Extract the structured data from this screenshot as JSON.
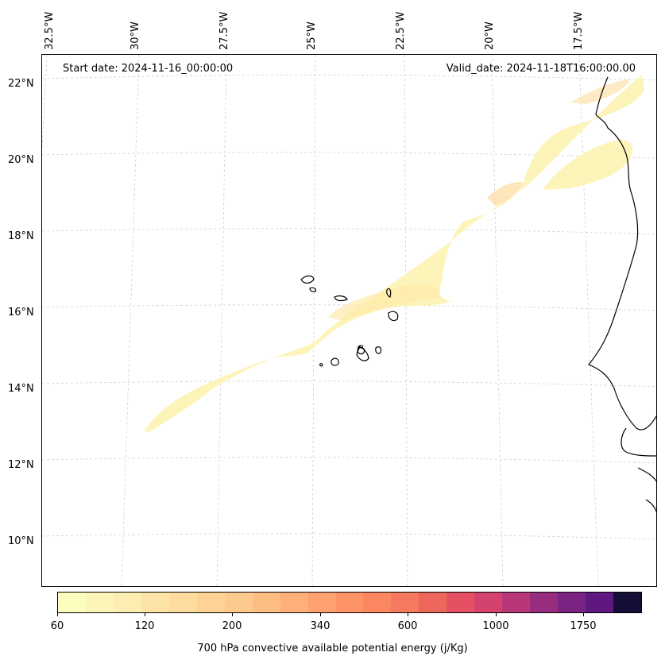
{
  "map": {
    "start_date_label": "Start date: 2024-11-16_00:00:00",
    "valid_date_label": "Valid_date: 2024-11-18T16:00:00.00",
    "longitude_labels": [
      "32.5°W",
      "30°W",
      "27.5°W",
      "25°W",
      "22.5°W",
      "20°W",
      "17.5°W"
    ],
    "latitude_labels": [
      "22°N",
      "20°N",
      "18°N",
      "16°N",
      "14°N",
      "12°N",
      "10°N"
    ],
    "gridlines": true
  },
  "colorbar": {
    "title": "700 hPa convective available potential energy (j/Kg)",
    "tick_labels": [
      "60",
      "120",
      "200",
      "340",
      "600",
      "1000",
      "1750"
    ],
    "colors": [
      "#fcfdbf",
      "#fcf5b8",
      "#fdedb0",
      "#fde4a6",
      "#fedc9e",
      "#fed395",
      "#fec98d",
      "#febd82",
      "#feb078",
      "#fea16e",
      "#fe9366",
      "#fb8761",
      "#f5795e",
      "#ee675c",
      "#e55162",
      "#d3436e",
      "#b73779",
      "#982d80",
      "#7b2382",
      "#5f187f",
      "#150e37"
    ]
  }
}
